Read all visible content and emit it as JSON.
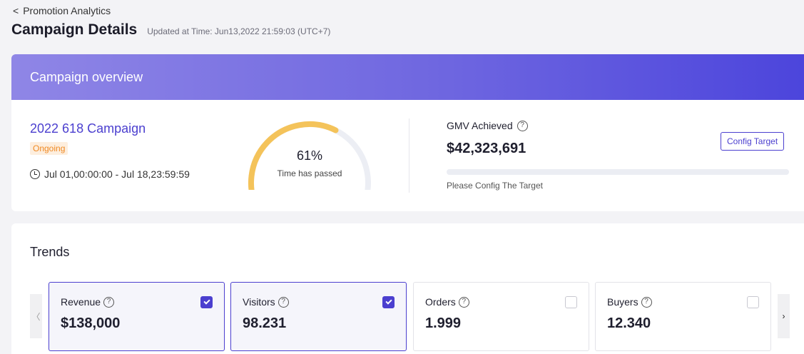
{
  "breadcrumb": {
    "back_label": "Promotion Analytics"
  },
  "header": {
    "title": "Campaign Details",
    "updated": "Updated at Time: Jun13,2022 21:59:03 (UTC+7)"
  },
  "overview": {
    "title": "Campaign overview",
    "campaign_name": "2022 618 Campaign",
    "status": "Ongoing",
    "date_range": "Jul 01,00:00:00 - Jul 18,23:59:59",
    "time_passed_value": 0.61,
    "time_passed_pct": "61%",
    "time_passed_label": "Time has passed",
    "gmv_label": "GMV Achieved",
    "gmv_value": "$42,323,691",
    "config_button": "Config Target",
    "target_progress": 0,
    "progress_note": "Please Config The Target",
    "colors": {
      "accent": "#4b3fcf",
      "gauge_fill": "#f4c35a",
      "gauge_track": "#eceef4",
      "status_text": "#f08a24",
      "status_bg": "#fdeede"
    }
  },
  "trends": {
    "title": "Trends",
    "metrics": [
      {
        "name": "Revenue",
        "value": "$138,000",
        "checked": true
      },
      {
        "name": "Visitors",
        "value": "98.231",
        "checked": true
      },
      {
        "name": "Orders",
        "value": "1.999",
        "checked": false
      },
      {
        "name": "Buyers",
        "value": "12.340",
        "checked": false
      }
    ],
    "prev_arrow": "〈",
    "next_arrow": "›"
  },
  "icons": {
    "back": "chevron-left-icon",
    "clock": "clock-icon",
    "help": "question-circle-icon",
    "check": "check-icon"
  }
}
